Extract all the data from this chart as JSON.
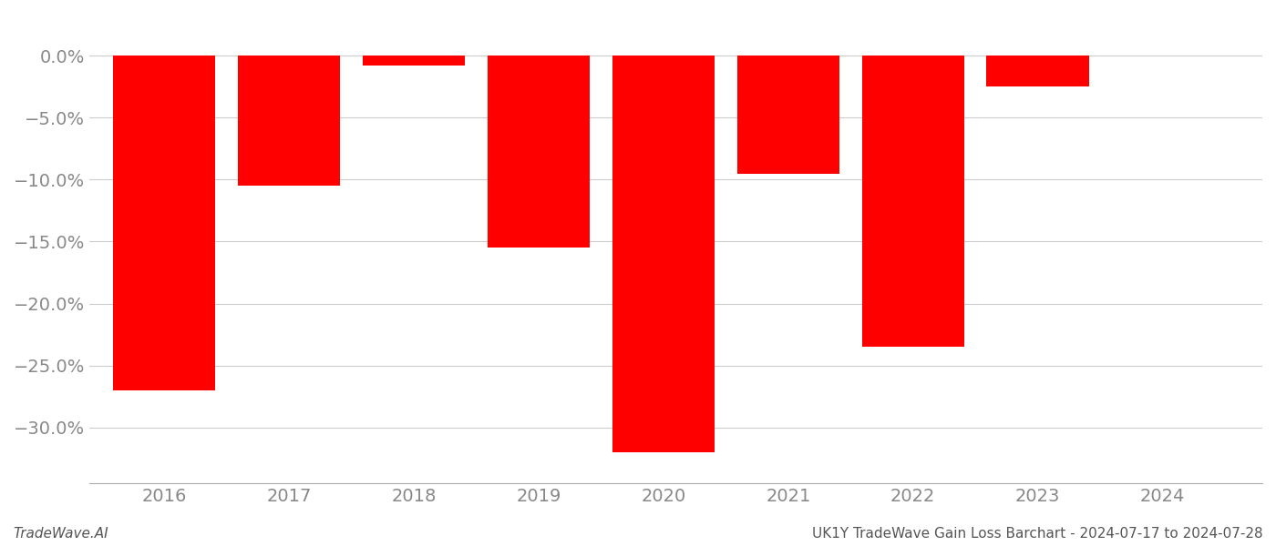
{
  "years": [
    2016,
    2017,
    2018,
    2019,
    2020,
    2021,
    2022,
    2023,
    2024
  ],
  "values": [
    -0.27,
    -0.105,
    -0.008,
    -0.155,
    -0.32,
    -0.095,
    -0.235,
    -0.025,
    0.0
  ],
  "bar_color": "#ff0000",
  "background_color": "#ffffff",
  "ylim": [
    -0.345,
    0.025
  ],
  "yticks": [
    0.0,
    -0.05,
    -0.1,
    -0.15,
    -0.2,
    -0.25,
    -0.3
  ],
  "xlabel": "",
  "ylabel": "",
  "title": "",
  "footer_left": "TradeWave.AI",
  "footer_right": "UK1Y TradeWave Gain Loss Barchart - 2024-07-17 to 2024-07-28",
  "grid_color": "#cccccc",
  "bar_width": 0.82,
  "xlim_left": 2015.4,
  "xlim_right": 2024.8,
  "tick_fontsize": 14,
  "footer_fontsize": 11
}
